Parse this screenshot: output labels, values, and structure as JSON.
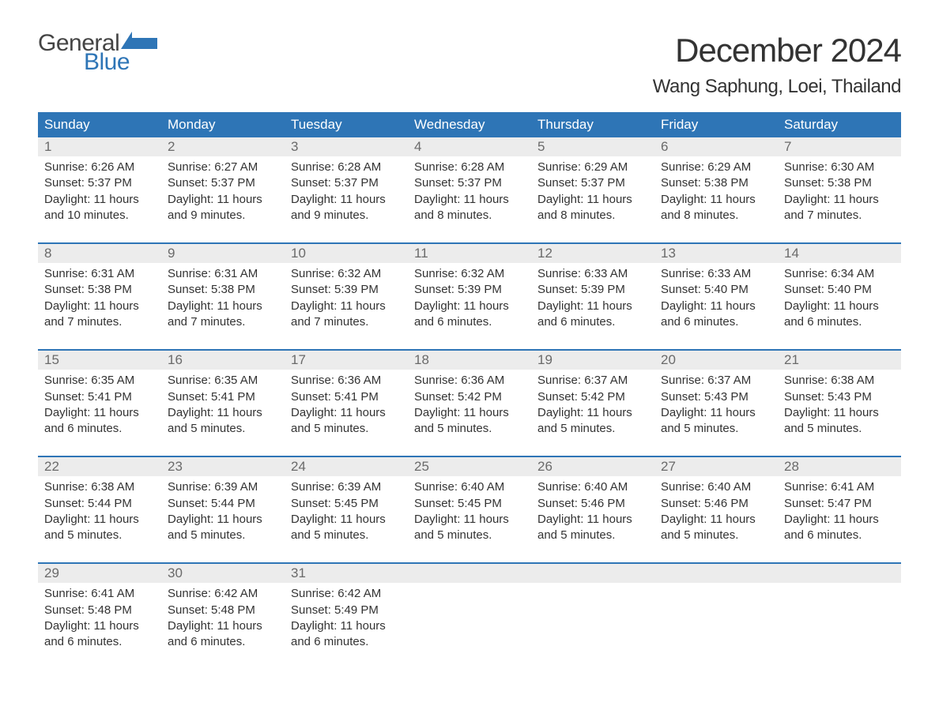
{
  "brand": {
    "line1": "General",
    "line2": "Blue",
    "gray": "#444444",
    "blue": "#2e75b6"
  },
  "title": "December 2024",
  "location": "Wang Saphung, Loei, Thailand",
  "calendar": {
    "header_bg": "#2e75b6",
    "header_fg": "#ffffff",
    "row_accent": "#2e75b6",
    "daynum_bg": "#ececec",
    "daynum_fg": "#6a6a6a",
    "body_fg": "#333333",
    "background": "#ffffff",
    "columns": [
      "Sunday",
      "Monday",
      "Tuesday",
      "Wednesday",
      "Thursday",
      "Friday",
      "Saturday"
    ],
    "weeks": [
      [
        {
          "n": "1",
          "sunrise": "6:26 AM",
          "sunset": "5:37 PM",
          "dl_h": "11",
          "dl_m": "10"
        },
        {
          "n": "2",
          "sunrise": "6:27 AM",
          "sunset": "5:37 PM",
          "dl_h": "11",
          "dl_m": "9"
        },
        {
          "n": "3",
          "sunrise": "6:28 AM",
          "sunset": "5:37 PM",
          "dl_h": "11",
          "dl_m": "9"
        },
        {
          "n": "4",
          "sunrise": "6:28 AM",
          "sunset": "5:37 PM",
          "dl_h": "11",
          "dl_m": "8"
        },
        {
          "n": "5",
          "sunrise": "6:29 AM",
          "sunset": "5:37 PM",
          "dl_h": "11",
          "dl_m": "8"
        },
        {
          "n": "6",
          "sunrise": "6:29 AM",
          "sunset": "5:38 PM",
          "dl_h": "11",
          "dl_m": "8"
        },
        {
          "n": "7",
          "sunrise": "6:30 AM",
          "sunset": "5:38 PM",
          "dl_h": "11",
          "dl_m": "7"
        }
      ],
      [
        {
          "n": "8",
          "sunrise": "6:31 AM",
          "sunset": "5:38 PM",
          "dl_h": "11",
          "dl_m": "7"
        },
        {
          "n": "9",
          "sunrise": "6:31 AM",
          "sunset": "5:38 PM",
          "dl_h": "11",
          "dl_m": "7"
        },
        {
          "n": "10",
          "sunrise": "6:32 AM",
          "sunset": "5:39 PM",
          "dl_h": "11",
          "dl_m": "7"
        },
        {
          "n": "11",
          "sunrise": "6:32 AM",
          "sunset": "5:39 PM",
          "dl_h": "11",
          "dl_m": "6"
        },
        {
          "n": "12",
          "sunrise": "6:33 AM",
          "sunset": "5:39 PM",
          "dl_h": "11",
          "dl_m": "6"
        },
        {
          "n": "13",
          "sunrise": "6:33 AM",
          "sunset": "5:40 PM",
          "dl_h": "11",
          "dl_m": "6"
        },
        {
          "n": "14",
          "sunrise": "6:34 AM",
          "sunset": "5:40 PM",
          "dl_h": "11",
          "dl_m": "6"
        }
      ],
      [
        {
          "n": "15",
          "sunrise": "6:35 AM",
          "sunset": "5:41 PM",
          "dl_h": "11",
          "dl_m": "6"
        },
        {
          "n": "16",
          "sunrise": "6:35 AM",
          "sunset": "5:41 PM",
          "dl_h": "11",
          "dl_m": "5"
        },
        {
          "n": "17",
          "sunrise": "6:36 AM",
          "sunset": "5:41 PM",
          "dl_h": "11",
          "dl_m": "5"
        },
        {
          "n": "18",
          "sunrise": "6:36 AM",
          "sunset": "5:42 PM",
          "dl_h": "11",
          "dl_m": "5"
        },
        {
          "n": "19",
          "sunrise": "6:37 AM",
          "sunset": "5:42 PM",
          "dl_h": "11",
          "dl_m": "5"
        },
        {
          "n": "20",
          "sunrise": "6:37 AM",
          "sunset": "5:43 PM",
          "dl_h": "11",
          "dl_m": "5"
        },
        {
          "n": "21",
          "sunrise": "6:38 AM",
          "sunset": "5:43 PM",
          "dl_h": "11",
          "dl_m": "5"
        }
      ],
      [
        {
          "n": "22",
          "sunrise": "6:38 AM",
          "sunset": "5:44 PM",
          "dl_h": "11",
          "dl_m": "5"
        },
        {
          "n": "23",
          "sunrise": "6:39 AM",
          "sunset": "5:44 PM",
          "dl_h": "11",
          "dl_m": "5"
        },
        {
          "n": "24",
          "sunrise": "6:39 AM",
          "sunset": "5:45 PM",
          "dl_h": "11",
          "dl_m": "5"
        },
        {
          "n": "25",
          "sunrise": "6:40 AM",
          "sunset": "5:45 PM",
          "dl_h": "11",
          "dl_m": "5"
        },
        {
          "n": "26",
          "sunrise": "6:40 AM",
          "sunset": "5:46 PM",
          "dl_h": "11",
          "dl_m": "5"
        },
        {
          "n": "27",
          "sunrise": "6:40 AM",
          "sunset": "5:46 PM",
          "dl_h": "11",
          "dl_m": "5"
        },
        {
          "n": "28",
          "sunrise": "6:41 AM",
          "sunset": "5:47 PM",
          "dl_h": "11",
          "dl_m": "6"
        }
      ],
      [
        {
          "n": "29",
          "sunrise": "6:41 AM",
          "sunset": "5:48 PM",
          "dl_h": "11",
          "dl_m": "6"
        },
        {
          "n": "30",
          "sunrise": "6:42 AM",
          "sunset": "5:48 PM",
          "dl_h": "11",
          "dl_m": "6"
        },
        {
          "n": "31",
          "sunrise": "6:42 AM",
          "sunset": "5:49 PM",
          "dl_h": "11",
          "dl_m": "6"
        },
        null,
        null,
        null,
        null
      ]
    ],
    "labels": {
      "sunrise": "Sunrise: ",
      "sunset": "Sunset: ",
      "daylight1": "Daylight: ",
      "hours_word": " hours",
      "and_word": "and ",
      "minutes_word": " minutes."
    }
  }
}
